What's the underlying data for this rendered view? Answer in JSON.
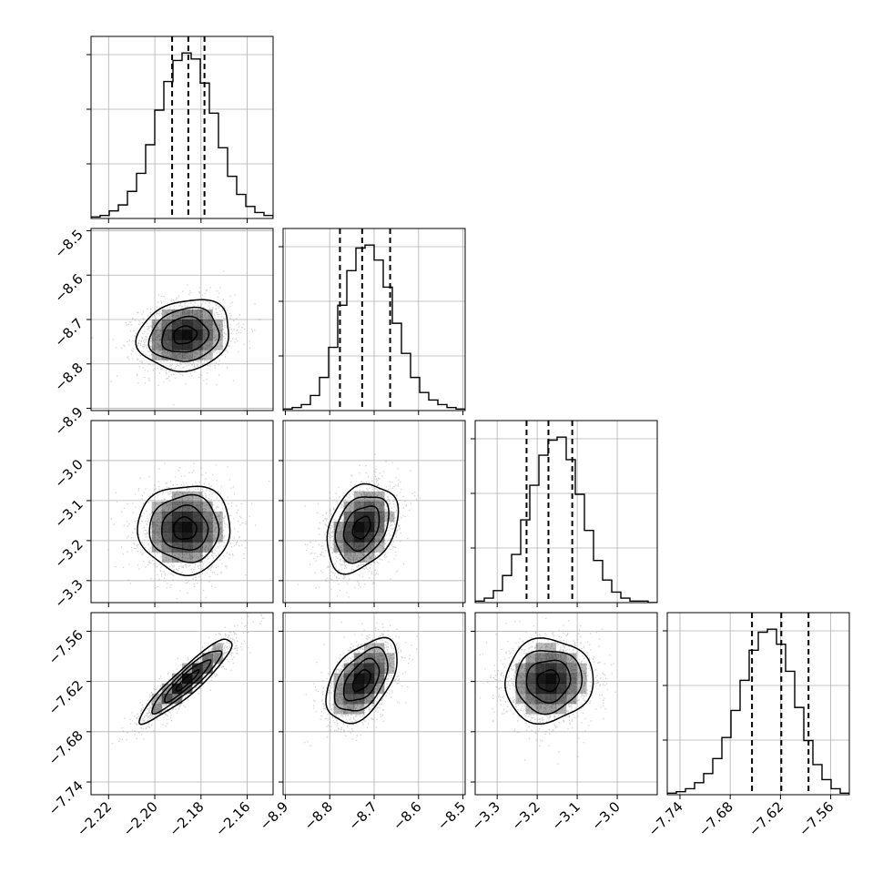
{
  "chart_data": {
    "type": "corner",
    "style": {
      "grid": true,
      "grid_color": "#b0b0b0",
      "line_color": "#000000",
      "density_color": "#000000"
    },
    "parameters": [
      {
        "range": [
          -2.2276,
          -2.1488
        ],
        "ticks": [
          -2.22,
          -2.2,
          -2.18,
          -2.16
        ],
        "tick_labels": [
          "−2.22",
          "−2.20",
          "−2.18",
          "−2.16"
        ],
        "hist": {
          "bin_edges": [
            -2.2276,
            -2.1488
          ],
          "counts": [
            1,
            2,
            5,
            9,
            18,
            30,
            49,
            72,
            91,
            105,
            110,
            106,
            90,
            70,
            47,
            28,
            16,
            8,
            4,
            2
          ]
        },
        "quantiles": [
          -2.1925,
          -2.1855,
          -2.1785
        ]
      },
      {
        "range": [
          -8.905,
          -8.495
        ],
        "ticks": [
          -8.9,
          -8.8,
          -8.7,
          -8.6,
          -8.5
        ],
        "tick_labels": [
          "−8.9",
          "−8.8",
          "−8.7",
          "−8.6",
          "−8.5"
        ],
        "hist": {
          "bin_edges": [
            -8.905,
            -8.495
          ],
          "counts": [
            1,
            2,
            4,
            10,
            22,
            42,
            70,
            93,
            108,
            110,
            100,
            82,
            58,
            38,
            22,
            12,
            7,
            4,
            2,
            1
          ]
        },
        "quantiles": [
          -8.777,
          -8.727,
          -8.664
        ]
      },
      {
        "range": [
          -3.355,
          -2.9
        ],
        "ticks": [
          -3.3,
          -3.2,
          -3.1,
          -3.0
        ],
        "tick_labels": [
          "−3.3",
          "−3.2",
          "−3.1",
          "−3.0"
        ],
        "hist": {
          "bin_edges": [
            -3.355,
            -2.9
          ],
          "counts": [
            1,
            3,
            8,
            18,
            32,
            55,
            78,
            98,
            108,
            110,
            95,
            72,
            48,
            28,
            15,
            7,
            3,
            1,
            1,
            0
          ]
        },
        "quantiles": [
          -3.2266,
          -3.1719,
          -3.1124
        ]
      },
      {
        "range": [
          -7.7552,
          -7.5378
        ],
        "ticks": [
          -7.74,
          -7.68,
          -7.62,
          -7.56
        ],
        "tick_labels": [
          "−7.74",
          "−7.68",
          "−7.62",
          "−7.56"
        ],
        "hist": {
          "bin_edges": [
            -7.7552,
            -7.5378
          ],
          "counts": [
            1,
            2,
            4,
            8,
            14,
            24,
            38,
            56,
            76,
            96,
            108,
            110,
            100,
            82,
            58,
            36,
            20,
            10,
            4,
            1
          ]
        },
        "quantiles": [
          -7.654,
          -7.619,
          -7.5865
        ]
      }
    ],
    "pairs": [
      {
        "x": 0,
        "y": 1,
        "center": [
          -2.187,
          -8.735
        ],
        "sigma": [
          0.01,
          0.04
        ],
        "rho": 0.15
      },
      {
        "x": 0,
        "y": 2,
        "center": [
          -2.187,
          -3.17
        ],
        "sigma": [
          0.01,
          0.055
        ],
        "rho": 0.0
      },
      {
        "x": 1,
        "y": 2,
        "center": [
          -8.728,
          -3.168
        ],
        "sigma": [
          0.04,
          0.055
        ],
        "rho": 0.32
      },
      {
        "x": 0,
        "y": 3,
        "center": [
          -2.186,
          -7.619
        ],
        "sigma": [
          0.01,
          0.025
        ],
        "rho": 0.92
      },
      {
        "x": 1,
        "y": 3,
        "center": [
          -8.728,
          -7.619
        ],
        "sigma": [
          0.04,
          0.025
        ],
        "rho": 0.48
      },
      {
        "x": 2,
        "y": 3,
        "center": [
          -3.172,
          -7.619
        ],
        "sigma": [
          0.055,
          0.025
        ],
        "rho": 0.05
      }
    ],
    "contour_levels_sigma": [
      0.5,
      1.0,
      1.5,
      2.0
    ]
  }
}
